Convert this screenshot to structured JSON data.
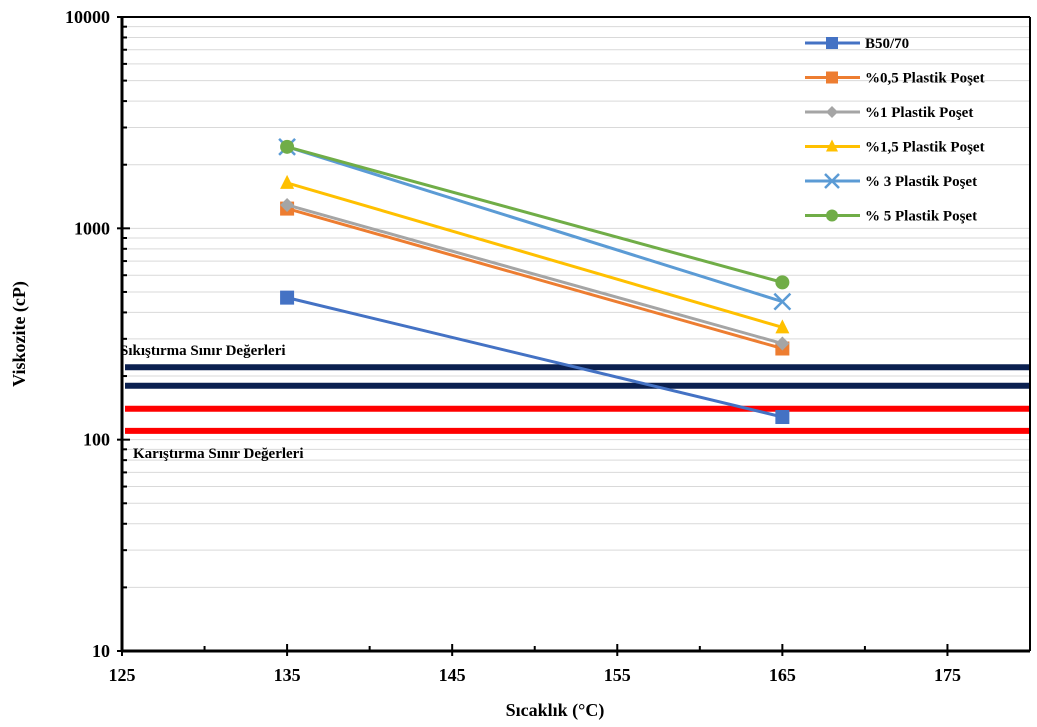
{
  "chart_data": {
    "type": "line",
    "xlabel": "Sıcaklık (°C)",
    "ylabel": "Viskozite (cP)",
    "xlim": [
      125,
      180
    ],
    "ylim": [
      10,
      10000
    ],
    "y_scale": "log",
    "x_ticks": [
      125,
      135,
      145,
      155,
      165,
      175
    ],
    "x_tick_labels": [
      "125",
      "135",
      "145",
      "155",
      "165",
      "175"
    ],
    "y_ticks": [
      10,
      100,
      1000,
      10000
    ],
    "y_tick_labels": [
      "10",
      "100",
      "1000",
      "10000"
    ],
    "grid": "horizontal minor",
    "legend_position": "top-right",
    "x": [
      135,
      165
    ],
    "series": [
      {
        "name": "B50/70",
        "values": [
          470,
          128
        ],
        "color": "#4472C4",
        "marker": "square"
      },
      {
        "name": "%0,5 Plastik Poşet",
        "values": [
          1240,
          270
        ],
        "color": "#ED7D31",
        "marker": "square"
      },
      {
        "name": "%1 Plastik Poşet",
        "values": [
          1290,
          285
        ],
        "color": "#A5A5A5",
        "marker": "diamond"
      },
      {
        "name": "%1,5 Plastik Poşet",
        "values": [
          1640,
          340
        ],
        "color": "#FFC000",
        "marker": "triangle"
      },
      {
        "name": "% 3 Plastik Poşet",
        "values": [
          2430,
          450
        ],
        "color": "#5B9BD5",
        "marker": "x"
      },
      {
        "name": "% 5 Plastik Poşet",
        "values": [
          2430,
          555
        ],
        "color": "#70AD47",
        "marker": "circle"
      }
    ],
    "reference_lines": [
      {
        "value": 220,
        "color": "#0B2050",
        "group": "compaction"
      },
      {
        "value": 180,
        "color": "#0B2050",
        "group": "compaction"
      },
      {
        "value": 140,
        "color": "#FF0000",
        "group": "mixing"
      },
      {
        "value": 110,
        "color": "#FF0000",
        "group": "mixing"
      }
    ],
    "annotations": {
      "compaction": "Sıkıştırma Sınır Değerleri",
      "mixing": "Karıştırma Sınır Değerleri"
    }
  }
}
